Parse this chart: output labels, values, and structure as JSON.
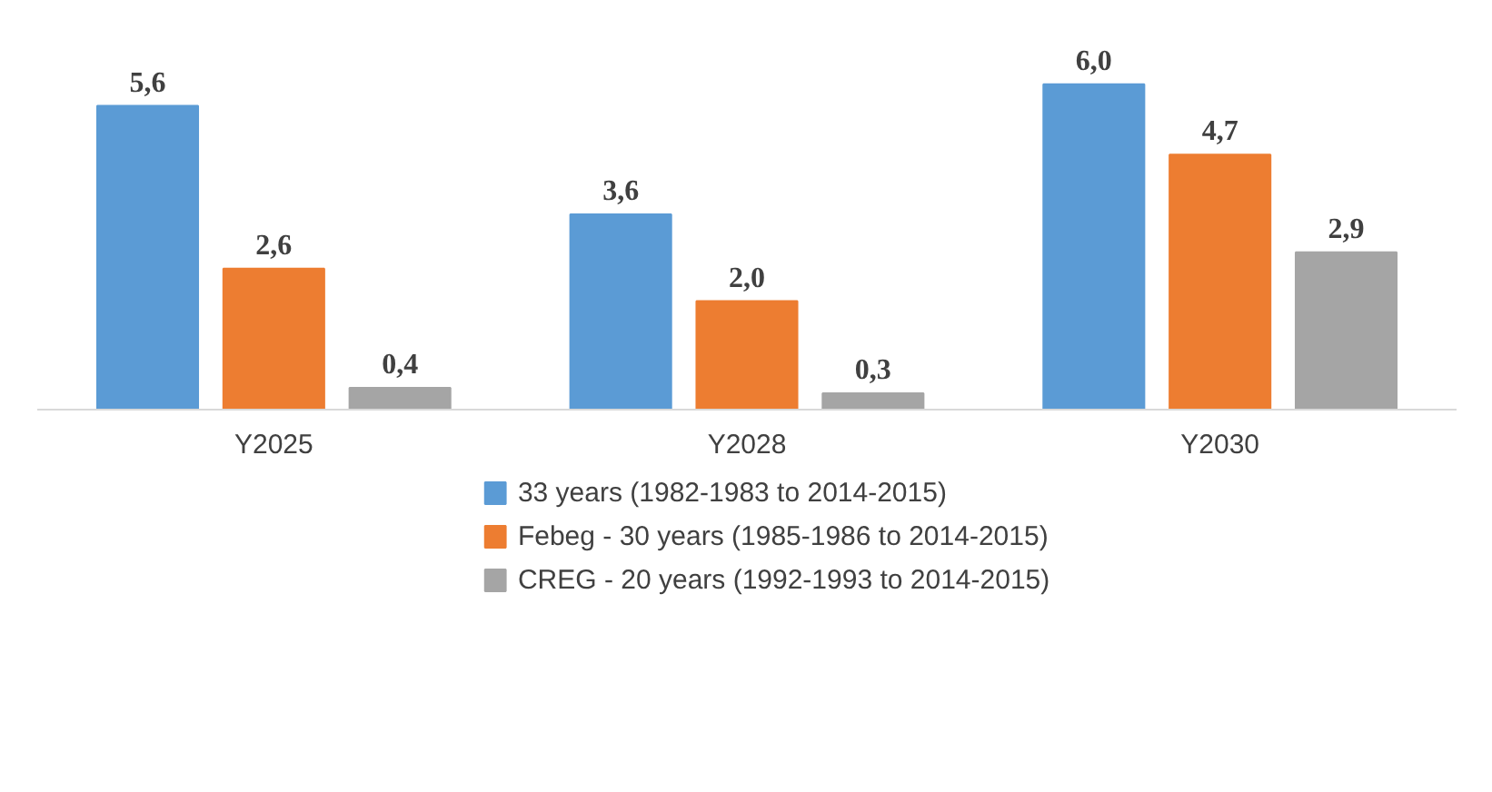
{
  "chart_data": {
    "type": "bar",
    "categories": [
      "Y2025",
      "Y2028",
      "Y2030"
    ],
    "series": [
      {
        "name": "33 years (1982-1983 to 2014-2015)",
        "color": "#5b9bd5",
        "values": [
          5.6,
          3.6,
          6.0
        ],
        "value_labels": [
          "5,6",
          "3,6",
          "6,0"
        ]
      },
      {
        "name": "Febeg - 30 years (1985-1986 to 2014-2015)",
        "color": "#ed7d31",
        "values": [
          2.6,
          2.0,
          4.7
        ],
        "value_labels": [
          "2,6",
          "2,0",
          "4,7"
        ]
      },
      {
        "name": "CREG - 20 years (1992-1993 to 2014-2015)",
        "color": "#a5a5a5",
        "values": [
          0.4,
          0.3,
          2.9
        ],
        "value_labels": [
          "0,4",
          "0,3",
          "2,9"
        ]
      }
    ],
    "legend": "bottom",
    "tick_labels": "x"
  }
}
